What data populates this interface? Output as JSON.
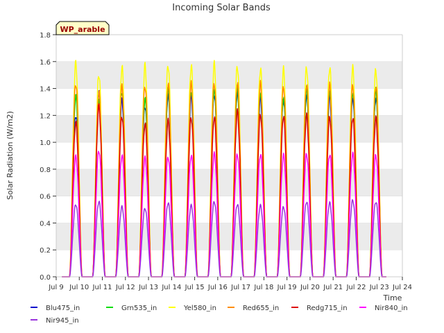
{
  "chart_data": {
    "type": "line",
    "title": "Incoming Solar Bands",
    "ylabel": "Solar Radiation (W/m2)",
    "xlabel": "Time",
    "badge": "WP_arable",
    "ylim": [
      0,
      1.8
    ],
    "xlim": [
      9,
      24
    ],
    "yticks": [
      "0.0",
      "0.2",
      "0.4",
      "0.6",
      "0.8",
      "1.0",
      "1.2",
      "1.4",
      "1.6",
      "1.8"
    ],
    "xticks": [
      "Jul 9",
      "Jul 10",
      "Jul 11",
      "Jul 12",
      "Jul 13",
      "Jul 14",
      "Jul 15",
      "Jul 16",
      "Jul 17",
      "Jul 18",
      "Jul 19",
      "Jul 20",
      "Jul 21",
      "Jul 22",
      "Jul 23",
      "Jul 24"
    ],
    "grid": "horizontal bands",
    "legend_position": "bottom",
    "day_centers": [
      9.85,
      10.85,
      11.85,
      12.85,
      13.85,
      14.85,
      15.85,
      16.85,
      17.85,
      18.85,
      19.85,
      20.85,
      21.85,
      22.85
    ],
    "series": [
      {
        "name": "Blu475_in",
        "color": "#0000cc",
        "peaks": [
          1.23,
          1.4,
          1.34,
          1.3,
          1.38,
          1.37,
          1.39,
          1.4,
          1.36,
          1.35,
          1.38,
          1.37,
          1.36,
          1.36
        ]
      },
      {
        "name": "Grn535_in",
        "color": "#00dd00",
        "peaks": [
          1.37,
          1.33,
          1.41,
          1.35,
          1.42,
          1.41,
          1.42,
          1.43,
          1.4,
          1.36,
          1.42,
          1.41,
          1.4,
          1.41
        ]
      },
      {
        "name": "Yel580_in",
        "color": "#ffff00",
        "peaks": [
          1.62,
          1.54,
          1.59,
          1.6,
          1.61,
          1.6,
          1.61,
          1.6,
          1.58,
          1.57,
          1.59,
          1.59,
          1.58,
          1.57
        ]
      },
      {
        "name": "Red655_in",
        "color": "#ff8c00",
        "peaks": [
          1.47,
          1.4,
          1.44,
          1.45,
          1.46,
          1.46,
          1.47,
          1.47,
          1.46,
          1.44,
          1.46,
          1.45,
          1.45,
          1.45
        ]
      },
      {
        "name": "Redg715_in",
        "color": "#dd0000",
        "peaks": [
          1.17,
          1.29,
          1.22,
          1.16,
          1.18,
          1.21,
          1.21,
          1.25,
          1.23,
          1.22,
          1.22,
          1.21,
          1.21,
          1.2
        ]
      },
      {
        "name": "Nir840_in",
        "color": "#ff00ff",
        "peaks": [
          0.91,
          0.96,
          0.92,
          0.9,
          0.91,
          0.92,
          0.93,
          0.93,
          0.93,
          0.92,
          0.93,
          0.93,
          0.93,
          0.92
        ]
      },
      {
        "name": "Nir945_in",
        "color": "#9933dd",
        "peaks": [
          0.55,
          0.57,
          0.53,
          0.52,
          0.56,
          0.54,
          0.57,
          0.55,
          0.54,
          0.53,
          0.57,
          0.56,
          0.58,
          0.57
        ]
      }
    ]
  }
}
